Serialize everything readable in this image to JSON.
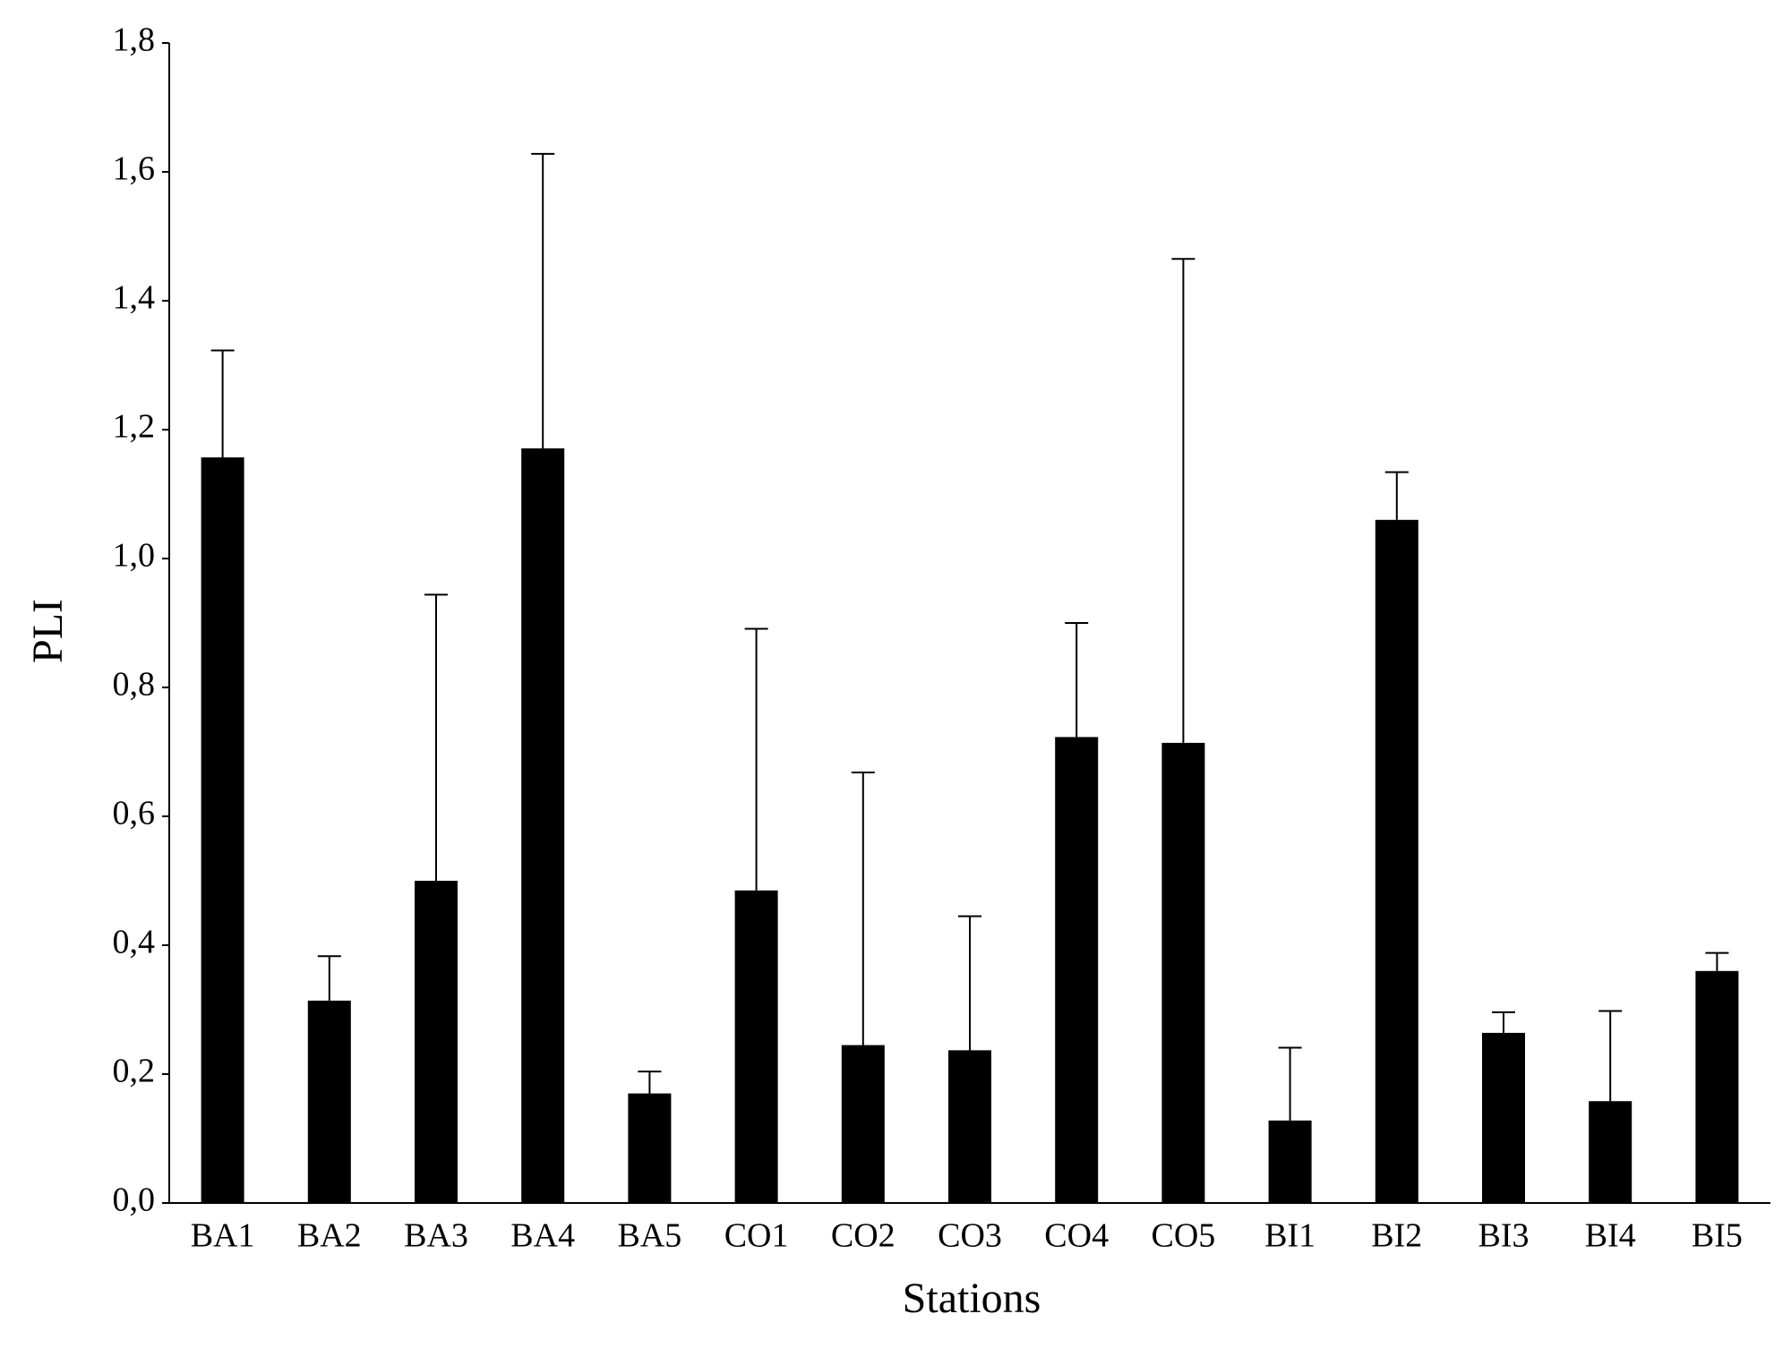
{
  "chart_data": {
    "type": "bar",
    "x_label": "Stations",
    "y_label": "PLI",
    "categories": [
      "BA1",
      "BA2",
      "BA3",
      "BA4",
      "BA5",
      "CO1",
      "CO2",
      "CO3",
      "CO4",
      "CO5",
      "BI1",
      "BI2",
      "BI3",
      "BI4",
      "BI5"
    ],
    "values": [
      1.157,
      0.314,
      0.5,
      1.171,
      0.17,
      0.485,
      0.245,
      0.237,
      0.723,
      0.714,
      0.128,
      1.06,
      0.264,
      0.158,
      0.36
    ],
    "errors": [
      0.166,
      0.069,
      0.444,
      0.457,
      0.034,
      0.406,
      0.423,
      0.208,
      0.177,
      0.751,
      0.113,
      0.074,
      0.032,
      0.14,
      0.028
    ],
    "color": "#000000",
    "ylim": [
      0,
      1.8
    ],
    "yticks": [
      {
        "value": 0,
        "label": "0,0"
      },
      {
        "value": 0.2,
        "label": "0,2"
      },
      {
        "value": 0.4,
        "label": "0,4"
      },
      {
        "value": 0.6,
        "label": "0,6"
      },
      {
        "value": 0.8,
        "label": "0,8"
      },
      {
        "value": 1.0,
        "label": "1,0"
      },
      {
        "value": 1.2,
        "label": "1,2"
      },
      {
        "value": 1.4,
        "label": "1,4"
      },
      {
        "value": 1.6,
        "label": "1,6"
      },
      {
        "value": 1.8,
        "label": "1,8"
      }
    ],
    "grid": false
  }
}
